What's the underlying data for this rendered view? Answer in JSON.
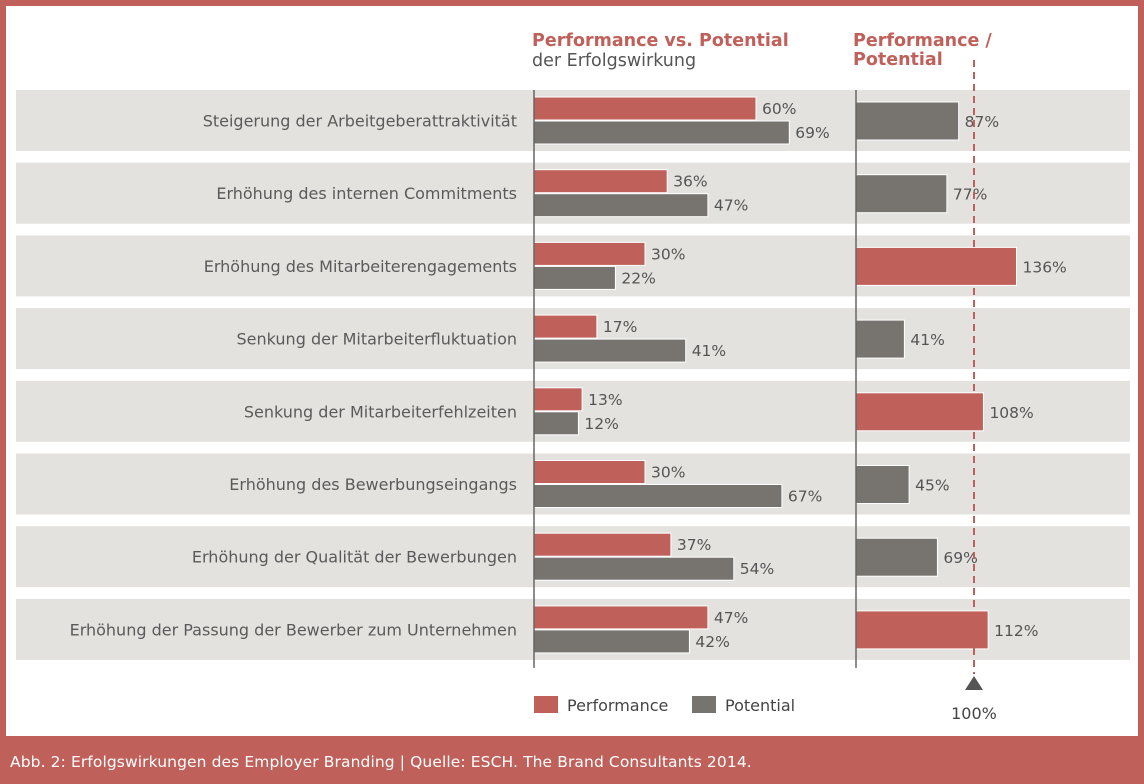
{
  "chart_data": {
    "type": "bar",
    "header_left": {
      "title": "Performance vs. Potential",
      "subtitle": "der Erfolgswirkung"
    },
    "header_right": {
      "title_line1": "Performance /",
      "title_line2": "Potential"
    },
    "categories": [
      "Steigerung der Arbeitgeberattraktivität",
      "Erhöhung des internen Commitments",
      "Erhöhung des Mitarbeiterengagements",
      "Senkung der Mitarbeiterfluktuation",
      "Senkung der Mitarbeiterfehlzeiten",
      "Erhöhung des Bewerbungseingangs",
      "Erhöhung der Qualität der Bewerbungen",
      "Erhöhung der Passung der Bewerber zum Unternehmen"
    ],
    "series": [
      {
        "name": "Performance",
        "color": "#c0605a",
        "values": [
          60,
          36,
          30,
          17,
          13,
          30,
          37,
          47
        ],
        "labels": [
          "60%",
          "36%",
          "30%",
          "17%",
          "13%",
          "30%",
          "37%",
          "47%"
        ]
      },
      {
        "name": "Potential",
        "color": "#77736f",
        "values": [
          69,
          47,
          22,
          41,
          12,
          67,
          54,
          42
        ],
        "labels": [
          "69%",
          "47%",
          "22%",
          "41%",
          "12%",
          "67%",
          "54%",
          "42%"
        ]
      }
    ],
    "ratio": {
      "name": "Performance / Potential",
      "values": [
        87,
        77,
        136,
        41,
        108,
        45,
        69,
        112
      ],
      "labels": [
        "87%",
        "77%",
        "136%",
        "41%",
        "108%",
        "45%",
        "69%",
        "112%"
      ],
      "reference": 100,
      "reference_label": "100%",
      "above_color": "#c0605a",
      "below_color": "#77736f"
    },
    "legend": [
      "Performance",
      "Potential"
    ]
  },
  "caption": "Abb. 2: Erfolgswirkungen des Employer Branding | Quelle: ESCH. The Brand Consultants 2014."
}
